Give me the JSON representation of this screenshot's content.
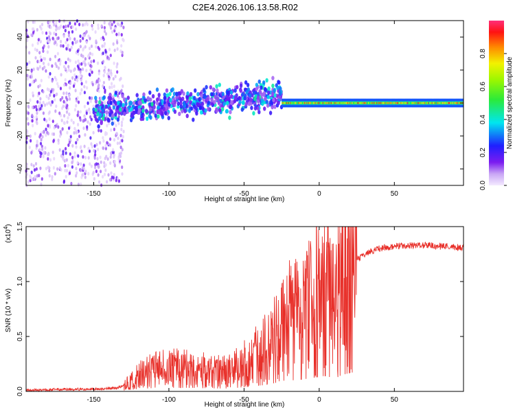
{
  "title": "C2E4.2026.106.13.58.R02",
  "chart_data": [
    {
      "type": "heatmap",
      "name": "spectrogram",
      "xlabel": "Height of straight line (km)",
      "ylabel": "Frequency (Hz)",
      "xlim": [
        -195,
        96
      ],
      "ylim": [
        -50,
        50
      ],
      "xticks": [
        -150,
        -100,
        -50,
        0,
        50
      ],
      "yticks": [
        -40,
        -20,
        0,
        20,
        40
      ],
      "xtick_labels": [
        "-150",
        "-100",
        "-50",
        "0",
        "50"
      ],
      "ytick_labels": [
        "-40",
        "-20",
        "0",
        "20",
        "40"
      ],
      "colorbar": {
        "label": "Normalized spectral amplitude",
        "range": [
          0,
          1
        ],
        "ticks": [
          0.0,
          0.2,
          0.4,
          0.6,
          0.8
        ],
        "tick_labels": [
          "0.0",
          "0.2",
          "0.4",
          "0.6",
          "0.8"
        ]
      },
      "description_regions": [
        {
          "x_from": -195,
          "x_to": -130,
          "freq_spread": 50,
          "amplitude": [
            0.02,
            0.15
          ]
        },
        {
          "x_from": -150,
          "x_to": -25,
          "freq_center_start": -5,
          "freq_center_end": 5,
          "freq_spread": 8,
          "amplitude": [
            0.1,
            0.45
          ]
        },
        {
          "x_from": -25,
          "x_to": 96,
          "freq_center": 0,
          "freq_spread": 2,
          "amplitude": [
            0.5,
            0.95
          ]
        }
      ]
    },
    {
      "type": "line",
      "name": "snr",
      "xlabel": "Height of straight line (km)",
      "ylabel": "SNR (10 * v/v)",
      "y_scale_label": "(x10",
      "y_scale_exponent": "4",
      "y_scale_close": ")",
      "xlim": [
        -195,
        96
      ],
      "ylim": [
        0,
        1.5
      ],
      "xticks": [
        -150,
        -100,
        -50,
        0,
        50
      ],
      "yticks": [
        0.0,
        0.5,
        1.0,
        1.5
      ],
      "xtick_labels": [
        "-150",
        "-100",
        "-50",
        "0",
        "50"
      ],
      "ytick_labels": [
        "0.0",
        "0.5",
        "1.0",
        "1.5"
      ],
      "color": "#e8302a",
      "series": [
        {
          "name": "SNR",
          "x": [
            -195,
            -170,
            -150,
            -135,
            -130,
            -125,
            -120,
            -110,
            -100,
            -90,
            -80,
            -70,
            -60,
            -50,
            -45,
            -40,
            -35,
            -30,
            -25,
            -20,
            -15,
            -10,
            -5,
            0,
            5,
            10,
            15,
            20,
            25,
            30,
            40,
            50,
            60,
            70,
            80,
            96
          ],
          "y": [
            0.01,
            0.02,
            0.02,
            0.03,
            0.05,
            0.1,
            0.15,
            0.2,
            0.22,
            0.22,
            0.2,
            0.18,
            0.18,
            0.25,
            0.3,
            0.35,
            0.4,
            0.5,
            0.6,
            0.65,
            0.7,
            0.75,
            0.8,
            0.9,
            0.95,
            0.75,
            1.0,
            1.1,
            1.2,
            1.25,
            1.3,
            1.32,
            1.33,
            1.33,
            1.32,
            1.31
          ]
        }
      ]
    }
  ]
}
